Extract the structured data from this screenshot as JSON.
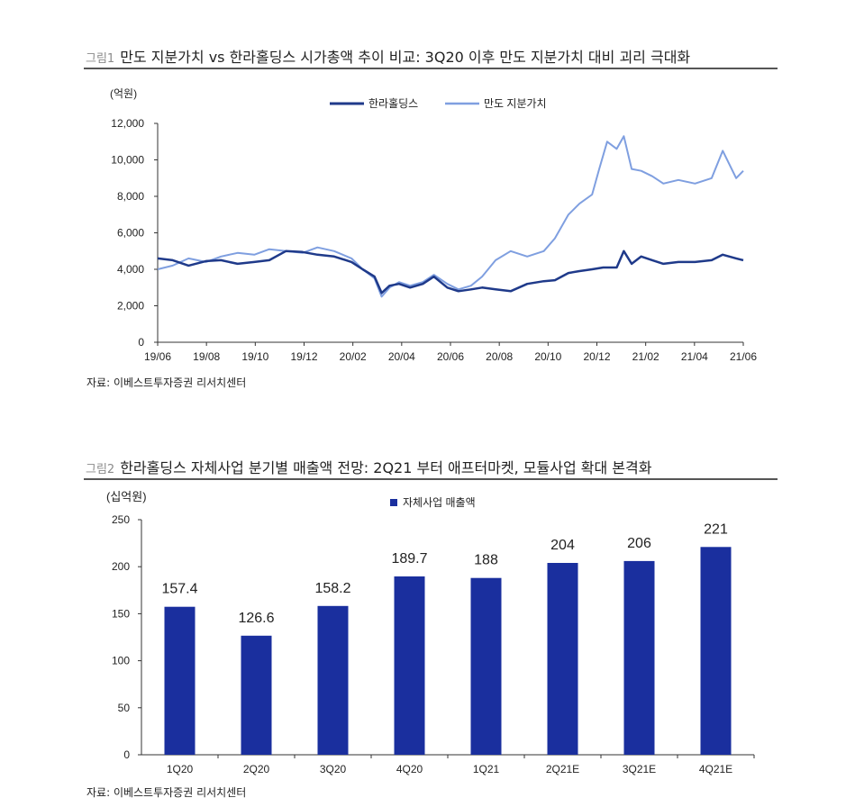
{
  "figure1": {
    "number": "그림1",
    "title": "만도 지분가치 vs 한라홀딩스 시가총액 추이 비교: 3Q20 이후 만도 지분가치 대비 괴리 극대화",
    "source": "자료: 이베스트투자증권 리서치센터"
  },
  "figure2": {
    "number": "그림2",
    "title": "한라홀딩스 자체사업 분기별 매출액 전망: 2Q21 부터 애프터마켓, 모듈사업 확대 본격화",
    "source": "자료: 이베스트투자증권 리서치센터"
  },
  "colors": {
    "dark_blue": "#1f3a8a",
    "light_blue": "#7f9fe0",
    "bar": "#1a2f9e"
  },
  "chart_data": [
    {
      "type": "line",
      "ylabel": "(억원)",
      "ylim": [
        0,
        12000
      ],
      "yticks": [
        0,
        2000,
        4000,
        6000,
        8000,
        10000,
        12000
      ],
      "ytick_labels": [
        "0",
        "2,000",
        "4,000",
        "6,000",
        "8,000",
        "10,000",
        "12,000"
      ],
      "xticks": [
        "19/06",
        "19/08",
        "19/10",
        "19/12",
        "20/02",
        "20/04",
        "20/06",
        "20/08",
        "20/10",
        "20/12",
        "21/02",
        "21/04",
        "21/06"
      ],
      "grid": false,
      "legend": "top",
      "series": [
        {
          "name": "한라홀딩스",
          "color": "#1f3a8a",
          "x": [
            "2019-06-01",
            "2019-06-20",
            "2019-07-10",
            "2019-08-01",
            "2019-08-20",
            "2019-09-10",
            "2019-10-01",
            "2019-10-20",
            "2019-11-10",
            "2019-12-01",
            "2019-12-20",
            "2020-01-10",
            "2020-02-01",
            "2020-02-15",
            "2020-03-01",
            "2020-03-10",
            "2020-03-20",
            "2020-04-01",
            "2020-04-15",
            "2020-05-01",
            "2020-05-15",
            "2020-06-01",
            "2020-06-15",
            "2020-07-01",
            "2020-07-15",
            "2020-08-01",
            "2020-08-20",
            "2020-09-10",
            "2020-10-01",
            "2020-10-15",
            "2020-11-01",
            "2020-11-15",
            "2020-12-01",
            "2020-12-15",
            "2021-01-01",
            "2021-01-10",
            "2021-01-20",
            "2021-02-01",
            "2021-02-15",
            "2021-03-01",
            "2021-03-20",
            "2021-04-10",
            "2021-05-01",
            "2021-05-15",
            "2021-06-01",
            "2021-06-10"
          ],
          "y": [
            4600,
            4500,
            4200,
            4450,
            4500,
            4300,
            4400,
            4500,
            5000,
            4950,
            4800,
            4700,
            4400,
            4000,
            3600,
            2700,
            3100,
            3200,
            3000,
            3200,
            3600,
            3000,
            2800,
            2900,
            3000,
            2900,
            2800,
            3200,
            3350,
            3400,
            3800,
            3900,
            4000,
            4100,
            4100,
            5000,
            4300,
            4700,
            4500,
            4300,
            4400,
            4400,
            4500,
            4800,
            4600,
            4500
          ]
        },
        {
          "name": "만도 지분가치",
          "color": "#7f9fe0",
          "x": [
            "2019-06-01",
            "2019-06-20",
            "2019-07-10",
            "2019-08-01",
            "2019-08-20",
            "2019-09-10",
            "2019-10-01",
            "2019-10-20",
            "2019-11-10",
            "2019-12-01",
            "2019-12-20",
            "2020-01-10",
            "2020-02-01",
            "2020-02-15",
            "2020-03-01",
            "2020-03-10",
            "2020-03-20",
            "2020-04-01",
            "2020-04-15",
            "2020-05-01",
            "2020-05-15",
            "2020-06-01",
            "2020-06-15",
            "2020-07-01",
            "2020-07-15",
            "2020-08-01",
            "2020-08-20",
            "2020-09-10",
            "2020-10-01",
            "2020-10-15",
            "2020-11-01",
            "2020-11-15",
            "2020-12-01",
            "2020-12-10",
            "2020-12-20",
            "2021-01-01",
            "2021-01-10",
            "2021-01-20",
            "2021-02-01",
            "2021-02-15",
            "2021-03-01",
            "2021-03-20",
            "2021-04-10",
            "2021-05-01",
            "2021-05-15",
            "2021-06-01",
            "2021-06-10"
          ],
          "y": [
            4000,
            4200,
            4600,
            4400,
            4700,
            4900,
            4800,
            5100,
            5000,
            4900,
            5200,
            5000,
            4600,
            4000,
            3500,
            2500,
            3000,
            3300,
            3100,
            3300,
            3700,
            3200,
            2900,
            3100,
            3600,
            4500,
            5000,
            4700,
            5000,
            5700,
            7000,
            7600,
            8100,
            9500,
            11000,
            10600,
            11300,
            9500,
            9400,
            9100,
            8700,
            8900,
            8700,
            9000,
            10500,
            9000,
            9400
          ]
        }
      ]
    },
    {
      "type": "bar",
      "ylabel": "(십억원)",
      "ylim": [
        0,
        250
      ],
      "yticks": [
        0,
        50,
        100,
        150,
        200,
        250
      ],
      "grid": false,
      "legend": "top",
      "categories": [
        "1Q20",
        "2Q20",
        "3Q20",
        "4Q20",
        "1Q21",
        "2Q21E",
        "3Q21E",
        "4Q21E"
      ],
      "series": [
        {
          "name": "자체사업 매출액",
          "color": "#1a2f9e",
          "values": [
            157.4,
            126.6,
            158.2,
            189.7,
            188,
            204,
            206,
            221
          ],
          "labels": [
            "157.4",
            "126.6",
            "158.2",
            "189.7",
            "188",
            "204",
            "206",
            "221"
          ]
        }
      ]
    }
  ]
}
